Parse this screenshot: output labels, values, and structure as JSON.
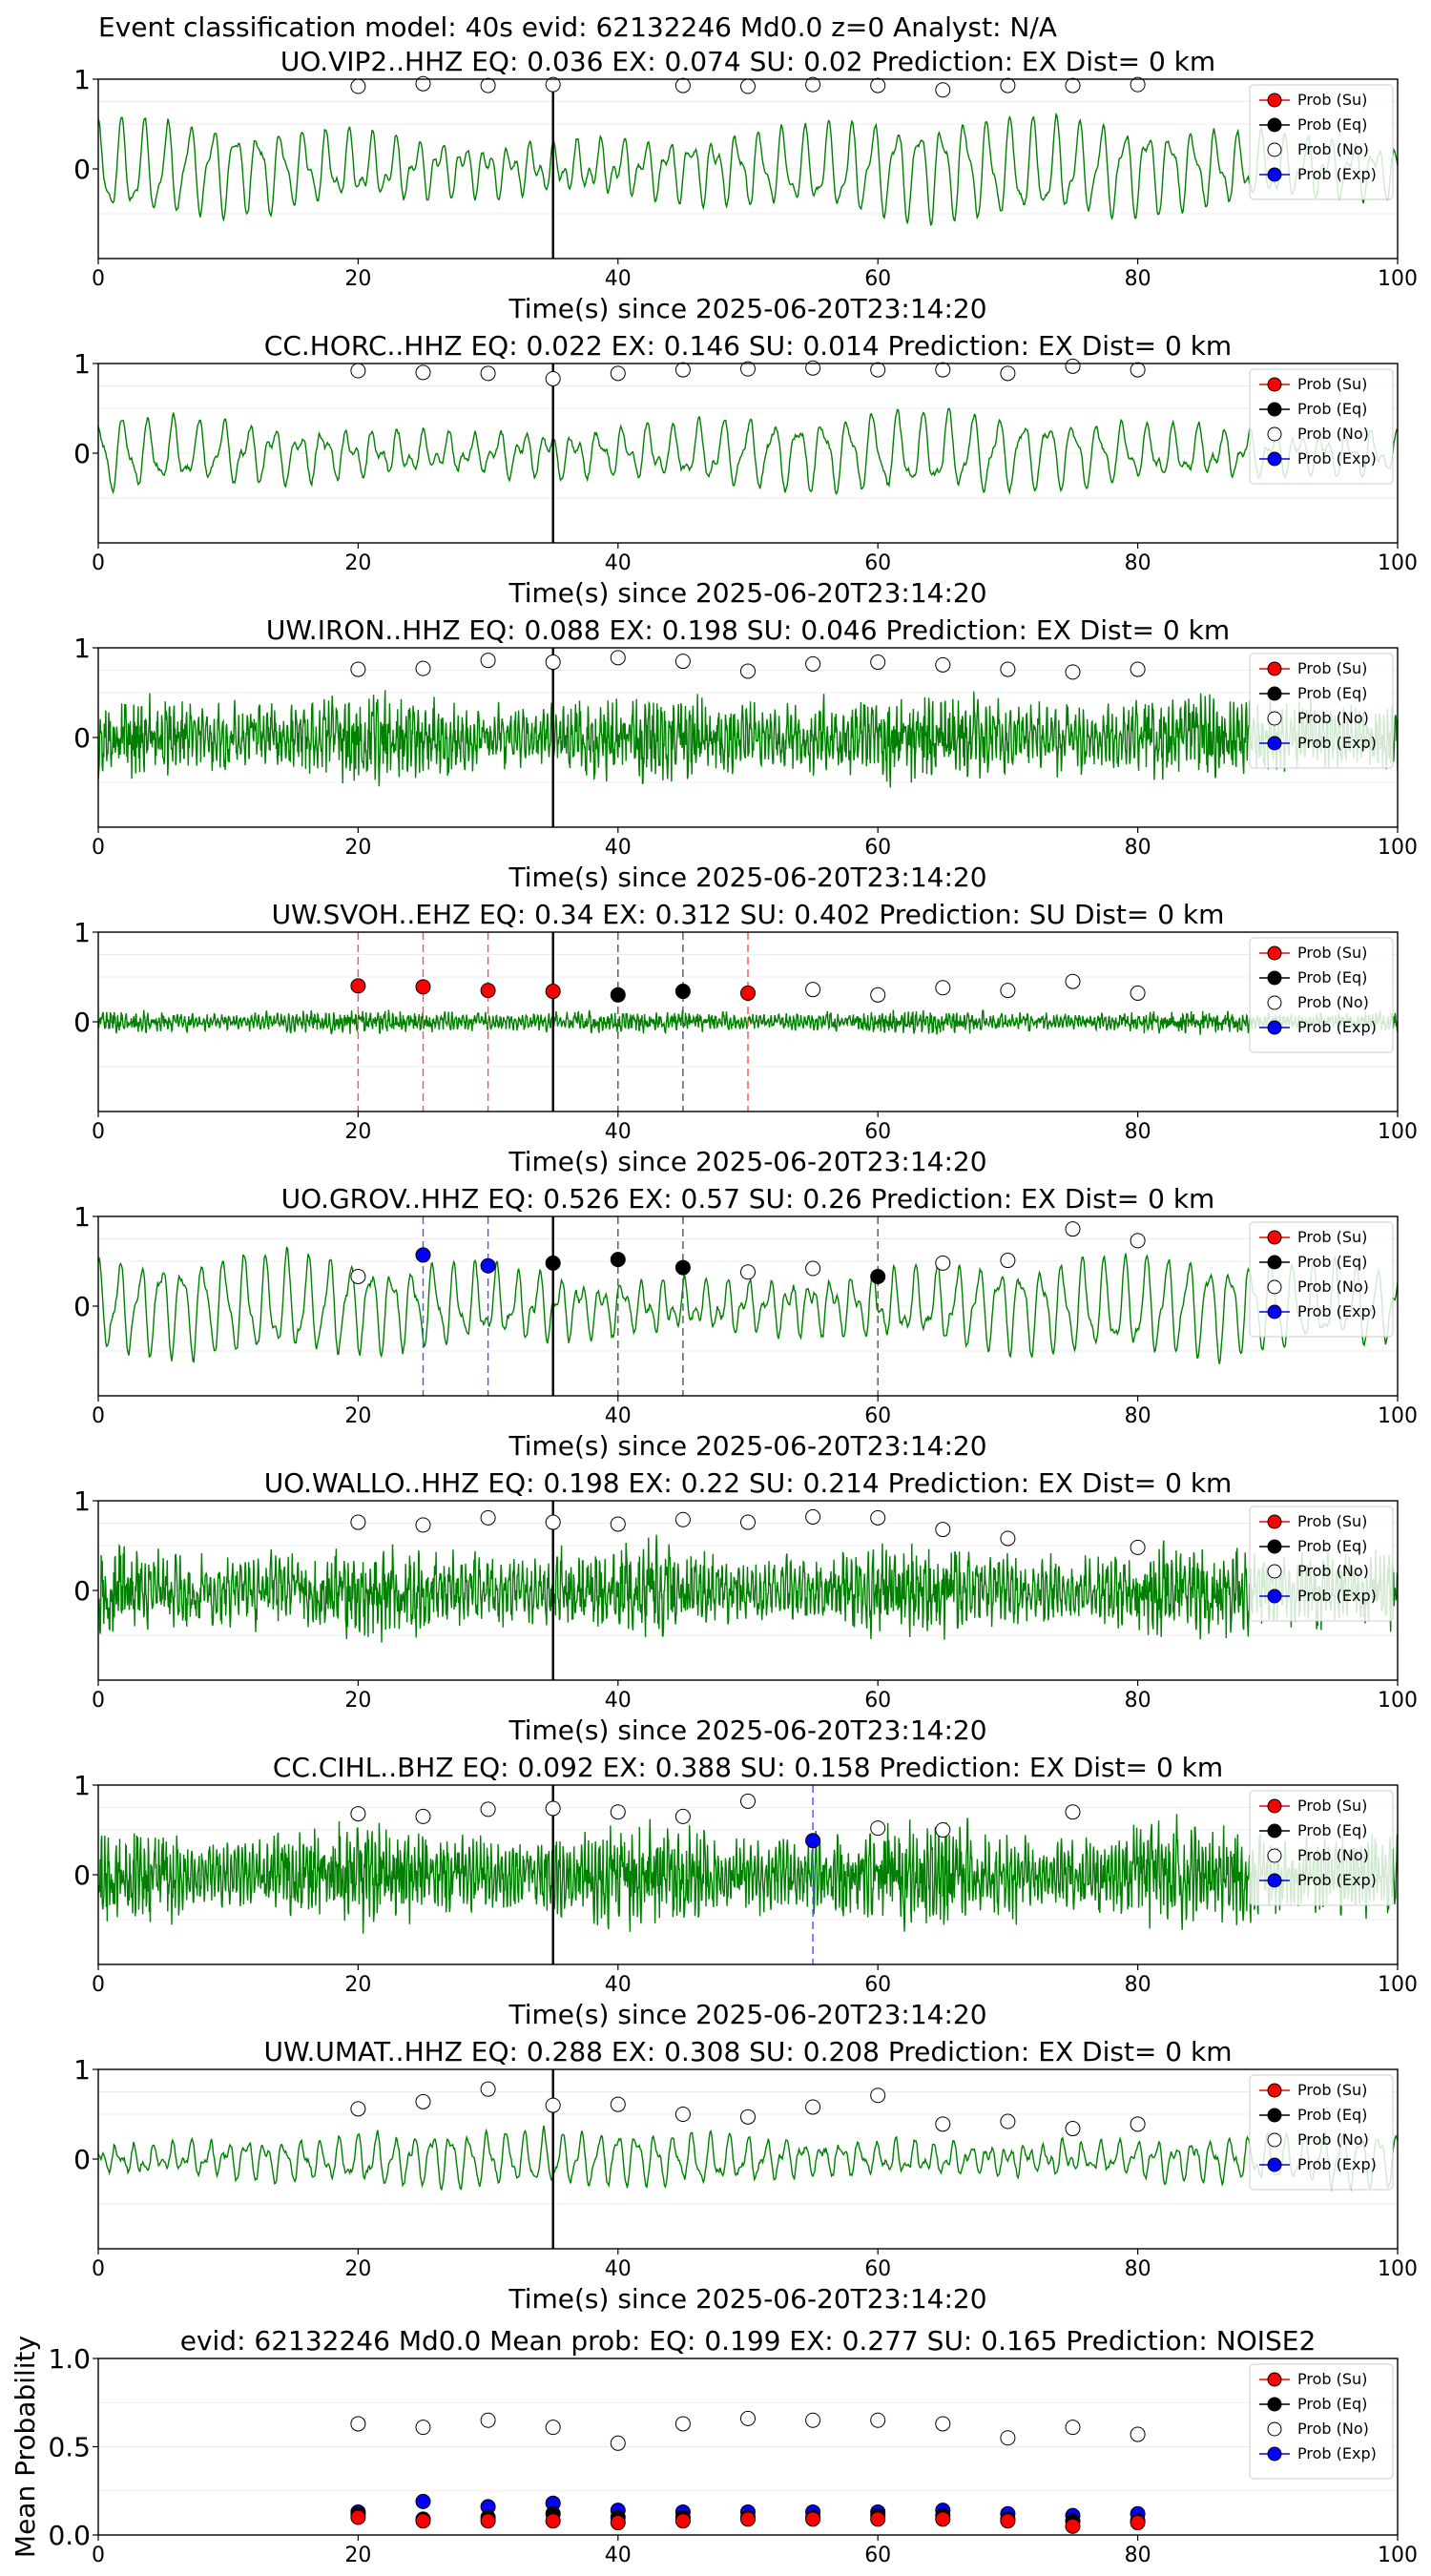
{
  "suptitle": "Event classification model: 40s evid: 62132246 Md0.0 z=0 Analyst: N/A",
  "colors": {
    "trace": "#008000",
    "su": "#ff0000",
    "eq": "#000000",
    "no": "#ffffff",
    "exp": "#0000ff",
    "su_line": "#ff5050",
    "eq_line": "#555555",
    "exp_line": "#5050ff",
    "pick_line": "#000000"
  },
  "legend": [
    "Prob (Su)",
    "Prob (Eq)",
    "Prob (No)",
    "Prob (Exp)"
  ],
  "xlabel": "Time(s) since 2025-06-20T23:14:20",
  "xticks": [
    0,
    20,
    40,
    60,
    80,
    100
  ],
  "chart_data": [
    {
      "type": "line",
      "title": "UO.VIP2..HHZ   EQ: 0.036  EX: 0.074  SU: 0.02   Prediction: EX    Dist= 0 km",
      "xlim": [
        0,
        100
      ],
      "ylim": [
        -1,
        1
      ],
      "yticks": [
        "1",
        "0"
      ],
      "xlabel": "Time(s) since 2025-06-20T23:14:20",
      "pick_time": 35,
      "trace": {
        "kind": "smooth",
        "freq": 0.57,
        "amp": 0.45,
        "noise": 0.07,
        "seed": 11
      },
      "points": [
        {
          "x": 20,
          "y": 0.92,
          "class": "no"
        },
        {
          "x": 25,
          "y": 0.95,
          "class": "no"
        },
        {
          "x": 30,
          "y": 0.93,
          "class": "no"
        },
        {
          "x": 35,
          "y": 0.94,
          "class": "no"
        },
        {
          "x": 45,
          "y": 0.93,
          "class": "no"
        },
        {
          "x": 50,
          "y": 0.92,
          "class": "no"
        },
        {
          "x": 55,
          "y": 0.94,
          "class": "no"
        },
        {
          "x": 60,
          "y": 0.93,
          "class": "no"
        },
        {
          "x": 65,
          "y": 0.88,
          "class": "no"
        },
        {
          "x": 70,
          "y": 0.93,
          "class": "no"
        },
        {
          "x": 75,
          "y": 0.93,
          "class": "no"
        },
        {
          "x": 80,
          "y": 0.94,
          "class": "no"
        }
      ]
    },
    {
      "type": "line",
      "title": "CC.HORC..HHZ   EQ: 0.022  EX: 0.146  SU: 0.014   Prediction: EX    Dist= 0 km",
      "xlim": [
        0,
        100
      ],
      "ylim": [
        -1,
        1
      ],
      "yticks": [
        "1",
        "0"
      ],
      "xlabel": "Time(s) since 2025-06-20T23:14:20",
      "pick_time": 35,
      "trace": {
        "kind": "smooth",
        "freq": 0.52,
        "amp": 0.35,
        "noise": 0.08,
        "seed": 23
      },
      "points": [
        {
          "x": 20,
          "y": 0.92,
          "class": "no"
        },
        {
          "x": 25,
          "y": 0.9,
          "class": "no"
        },
        {
          "x": 30,
          "y": 0.89,
          "class": "no"
        },
        {
          "x": 35,
          "y": 0.83,
          "class": "no"
        },
        {
          "x": 40,
          "y": 0.89,
          "class": "no"
        },
        {
          "x": 45,
          "y": 0.93,
          "class": "no"
        },
        {
          "x": 50,
          "y": 0.94,
          "class": "no"
        },
        {
          "x": 55,
          "y": 0.95,
          "class": "no"
        },
        {
          "x": 60,
          "y": 0.93,
          "class": "no"
        },
        {
          "x": 65,
          "y": 0.93,
          "class": "no"
        },
        {
          "x": 70,
          "y": 0.89,
          "class": "no"
        },
        {
          "x": 75,
          "y": 0.97,
          "class": "no"
        },
        {
          "x": 80,
          "y": 0.93,
          "class": "no"
        }
      ]
    },
    {
      "type": "line",
      "title": "UW.IRON..HHZ   EQ: 0.088  EX: 0.198  SU: 0.046   Prediction: EX    Dist= 0 km",
      "xlim": [
        0,
        100
      ],
      "ylim": [
        -1,
        1
      ],
      "yticks": [
        "1",
        "0"
      ],
      "xlabel": "Time(s) since 2025-06-20T23:14:20",
      "pick_time": 35,
      "trace": {
        "kind": "noisy",
        "freq": 3.2,
        "amp": 0.38,
        "noise": 0.2,
        "seed": 37
      },
      "points": [
        {
          "x": 20,
          "y": 0.76,
          "class": "no"
        },
        {
          "x": 25,
          "y": 0.77,
          "class": "no"
        },
        {
          "x": 30,
          "y": 0.86,
          "class": "no"
        },
        {
          "x": 35,
          "y": 0.84,
          "class": "no"
        },
        {
          "x": 40,
          "y": 0.89,
          "class": "no"
        },
        {
          "x": 45,
          "y": 0.85,
          "class": "no"
        },
        {
          "x": 50,
          "y": 0.74,
          "class": "no"
        },
        {
          "x": 55,
          "y": 0.82,
          "class": "no"
        },
        {
          "x": 60,
          "y": 0.84,
          "class": "no"
        },
        {
          "x": 65,
          "y": 0.81,
          "class": "no"
        },
        {
          "x": 70,
          "y": 0.76,
          "class": "no"
        },
        {
          "x": 75,
          "y": 0.73,
          "class": "no"
        },
        {
          "x": 80,
          "y": 0.76,
          "class": "no"
        }
      ]
    },
    {
      "type": "line",
      "title": "UW.SVOH..EHZ   EQ: 0.34  EX: 0.312  SU: 0.402   Prediction: SU    Dist= 0 km",
      "xlim": [
        0,
        100
      ],
      "ylim": [
        -1,
        1
      ],
      "yticks": [
        "1",
        "0"
      ],
      "xlabel": "Time(s) since 2025-06-20T23:14:20",
      "pick_time": 35,
      "trace": {
        "kind": "noisy",
        "freq": 3.5,
        "amp": 0.1,
        "noise": 0.06,
        "seed": 41
      },
      "points": [
        {
          "x": 20,
          "y": 0.4,
          "class": "su"
        },
        {
          "x": 25,
          "y": 0.39,
          "class": "su"
        },
        {
          "x": 30,
          "y": 0.35,
          "class": "su"
        },
        {
          "x": 35,
          "y": 0.34,
          "class": "su"
        },
        {
          "x": 40,
          "y": 0.3,
          "class": "eq"
        },
        {
          "x": 45,
          "y": 0.34,
          "class": "eq"
        },
        {
          "x": 50,
          "y": 0.32,
          "class": "su"
        },
        {
          "x": 55,
          "y": 0.36,
          "class": "no"
        },
        {
          "x": 60,
          "y": 0.3,
          "class": "no"
        },
        {
          "x": 65,
          "y": 0.38,
          "class": "no"
        },
        {
          "x": 70,
          "y": 0.35,
          "class": "no"
        },
        {
          "x": 75,
          "y": 0.45,
          "class": "no"
        },
        {
          "x": 80,
          "y": 0.32,
          "class": "no"
        }
      ]
    },
    {
      "type": "line",
      "title": "UO.GROV..HHZ   EQ: 0.526  EX: 0.57  SU: 0.26   Prediction: EX    Dist= 0 km",
      "xlim": [
        0,
        100
      ],
      "ylim": [
        -1,
        1
      ],
      "yticks": [
        "1",
        "0"
      ],
      "xlabel": "Time(s) since 2025-06-20T23:14:20",
      "pick_time": 35,
      "trace": {
        "kind": "smooth",
        "freq": 0.62,
        "amp": 0.45,
        "noise": 0.1,
        "seed": 53
      },
      "points": [
        {
          "x": 20,
          "y": 0.33,
          "class": "no"
        },
        {
          "x": 25,
          "y": 0.57,
          "class": "exp"
        },
        {
          "x": 30,
          "y": 0.45,
          "class": "exp"
        },
        {
          "x": 35,
          "y": 0.48,
          "class": "eq"
        },
        {
          "x": 40,
          "y": 0.52,
          "class": "eq"
        },
        {
          "x": 45,
          "y": 0.43,
          "class": "eq"
        },
        {
          "x": 50,
          "y": 0.38,
          "class": "no"
        },
        {
          "x": 55,
          "y": 0.42,
          "class": "no"
        },
        {
          "x": 60,
          "y": 0.33,
          "class": "eq"
        },
        {
          "x": 65,
          "y": 0.48,
          "class": "no"
        },
        {
          "x": 70,
          "y": 0.51,
          "class": "no"
        },
        {
          "x": 75,
          "y": 0.86,
          "class": "no"
        },
        {
          "x": 80,
          "y": 0.73,
          "class": "no"
        }
      ]
    },
    {
      "type": "line",
      "title": "UO.WALLO..HHZ   EQ: 0.198  EX: 0.22  SU: 0.214   Prediction: EX    Dist= 0 km",
      "xlim": [
        0,
        100
      ],
      "ylim": [
        -1,
        1
      ],
      "yticks": [
        "1",
        "0"
      ],
      "xlabel": "Time(s) since 2025-06-20T23:14:20",
      "pick_time": 35,
      "trace": {
        "kind": "noisy",
        "freq": 3.0,
        "amp": 0.4,
        "noise": 0.22,
        "seed": 67
      },
      "points": [
        {
          "x": 20,
          "y": 0.76,
          "class": "no"
        },
        {
          "x": 25,
          "y": 0.73,
          "class": "no"
        },
        {
          "x": 30,
          "y": 0.81,
          "class": "no"
        },
        {
          "x": 35,
          "y": 0.76,
          "class": "no"
        },
        {
          "x": 40,
          "y": 0.74,
          "class": "no"
        },
        {
          "x": 45,
          "y": 0.79,
          "class": "no"
        },
        {
          "x": 50,
          "y": 0.76,
          "class": "no"
        },
        {
          "x": 55,
          "y": 0.82,
          "class": "no"
        },
        {
          "x": 60,
          "y": 0.81,
          "class": "no"
        },
        {
          "x": 65,
          "y": 0.68,
          "class": "no"
        },
        {
          "x": 70,
          "y": 0.58,
          "class": "no"
        },
        {
          "x": 80,
          "y": 0.48,
          "class": "no"
        }
      ]
    },
    {
      "type": "line",
      "title": "CC.CIHL..BHZ   EQ: 0.092  EX: 0.388  SU: 0.158   Prediction: EX    Dist= 0 km",
      "xlim": [
        0,
        100
      ],
      "ylim": [
        -1,
        1
      ],
      "yticks": [
        "1",
        "0"
      ],
      "xlabel": "Time(s) since 2025-06-20T23:14:20",
      "pick_time": 35,
      "trace": {
        "kind": "noisy",
        "freq": 3.6,
        "amp": 0.45,
        "noise": 0.22,
        "seed": 79
      },
      "points": [
        {
          "x": 20,
          "y": 0.68,
          "class": "no"
        },
        {
          "x": 25,
          "y": 0.65,
          "class": "no"
        },
        {
          "x": 30,
          "y": 0.73,
          "class": "no"
        },
        {
          "x": 35,
          "y": 0.74,
          "class": "no"
        },
        {
          "x": 40,
          "y": 0.7,
          "class": "no"
        },
        {
          "x": 45,
          "y": 0.65,
          "class": "no"
        },
        {
          "x": 50,
          "y": 0.82,
          "class": "no"
        },
        {
          "x": 55,
          "y": 0.38,
          "class": "exp"
        },
        {
          "x": 60,
          "y": 0.52,
          "class": "no"
        },
        {
          "x": 65,
          "y": 0.5,
          "class": "no"
        },
        {
          "x": 75,
          "y": 0.7,
          "class": "no"
        }
      ]
    },
    {
      "type": "line",
      "title": "UW.UMAT..HHZ   EQ: 0.288  EX: 0.308  SU: 0.208   Prediction: EX    Dist= 0 km",
      "xlim": [
        0,
        100
      ],
      "ylim": [
        -1,
        1
      ],
      "yticks": [
        "1",
        "0"
      ],
      "xlabel": "Time(s) since 2025-06-20T23:14:20",
      "pick_time": 35,
      "trace": {
        "kind": "smooth",
        "freq": 0.7,
        "amp": 0.25,
        "noise": 0.09,
        "seed": 83
      },
      "points": [
        {
          "x": 20,
          "y": 0.56,
          "class": "no"
        },
        {
          "x": 25,
          "y": 0.64,
          "class": "no"
        },
        {
          "x": 30,
          "y": 0.78,
          "class": "no"
        },
        {
          "x": 35,
          "y": 0.6,
          "class": "no"
        },
        {
          "x": 40,
          "y": 0.61,
          "class": "no"
        },
        {
          "x": 45,
          "y": 0.5,
          "class": "no"
        },
        {
          "x": 50,
          "y": 0.47,
          "class": "no"
        },
        {
          "x": 55,
          "y": 0.58,
          "class": "no"
        },
        {
          "x": 60,
          "y": 0.71,
          "class": "no"
        },
        {
          "x": 65,
          "y": 0.39,
          "class": "no"
        },
        {
          "x": 70,
          "y": 0.42,
          "class": "no"
        },
        {
          "x": 75,
          "y": 0.34,
          "class": "no"
        },
        {
          "x": 80,
          "y": 0.39,
          "class": "no"
        }
      ]
    },
    {
      "type": "scatter",
      "title": "evid: 62132246  Md0.0   Mean prob:    EQ: 0.199  EX: 0.277  SU: 0.165   Prediction: NOISE2",
      "ylabel": "Mean Probability",
      "xlim": [
        0,
        100
      ],
      "ylim": [
        0,
        1
      ],
      "yticks": [
        "1.0",
        "0.5",
        "0.0"
      ],
      "x": [
        20,
        25,
        30,
        35,
        40,
        45,
        50,
        55,
        60,
        65,
        70,
        75,
        80
      ],
      "series": [
        {
          "name": "Prob (No)",
          "class": "no",
          "values": [
            0.63,
            0.61,
            0.65,
            0.61,
            0.52,
            0.63,
            0.66,
            0.65,
            0.65,
            0.63,
            0.55,
            0.61,
            0.57
          ]
        },
        {
          "name": "Prob (Exp)",
          "class": "exp",
          "values": [
            0.13,
            0.19,
            0.16,
            0.18,
            0.14,
            0.13,
            0.13,
            0.13,
            0.13,
            0.14,
            0.12,
            0.11,
            0.12
          ]
        },
        {
          "name": "Prob (Eq)",
          "class": "eq",
          "values": [
            0.12,
            0.09,
            0.1,
            0.12,
            0.1,
            0.1,
            0.1,
            0.1,
            0.11,
            0.11,
            0.09,
            0.08,
            0.08
          ]
        },
        {
          "name": "Prob (Su)",
          "class": "su",
          "values": [
            0.1,
            0.08,
            0.08,
            0.08,
            0.07,
            0.08,
            0.09,
            0.09,
            0.09,
            0.09,
            0.08,
            0.05,
            0.07
          ]
        }
      ]
    }
  ]
}
